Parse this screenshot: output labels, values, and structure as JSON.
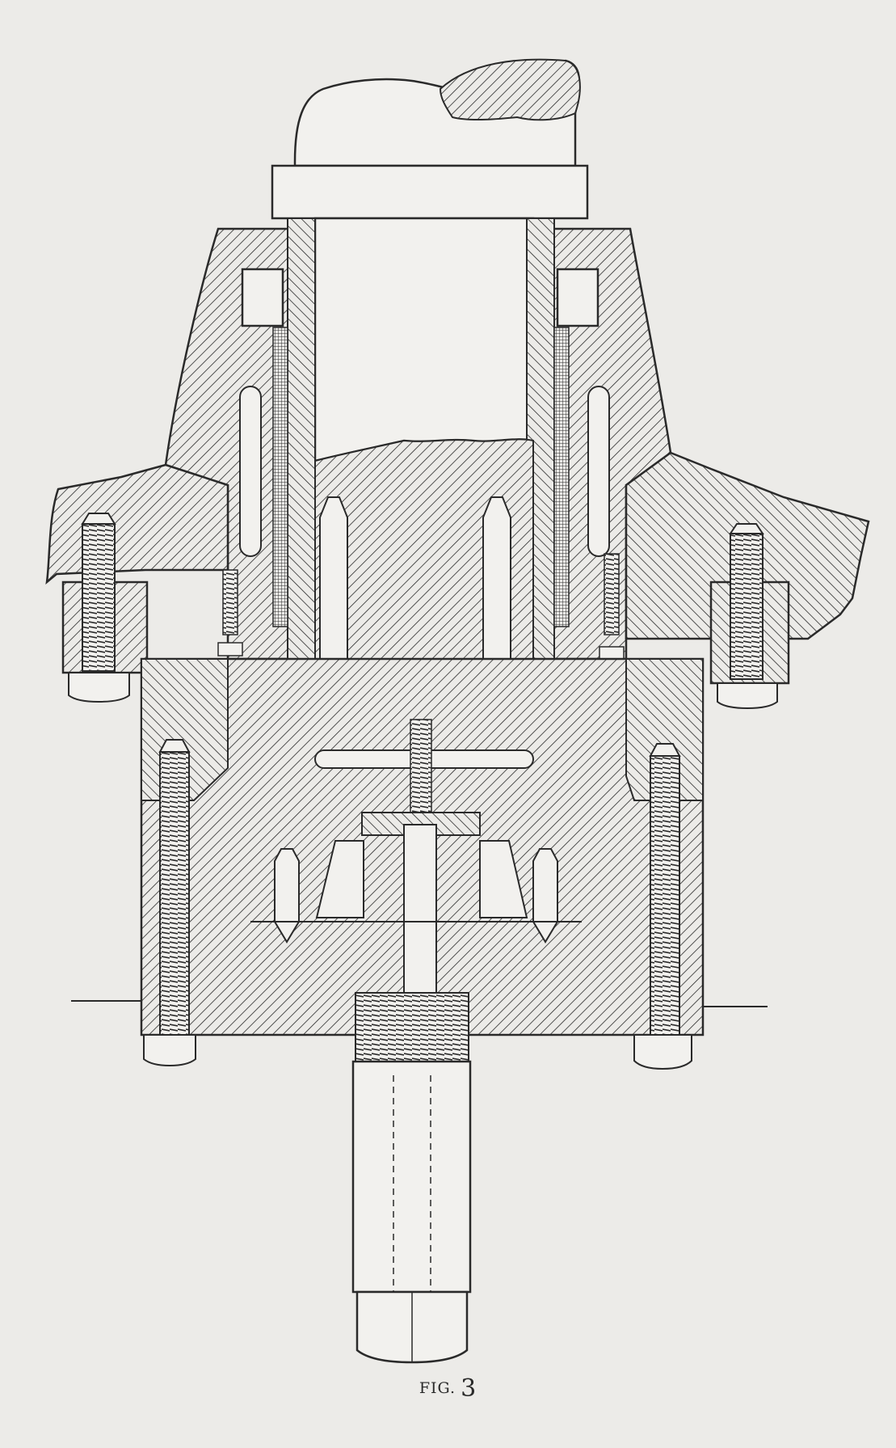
{
  "figure": {
    "caption_prefix": "FIG.",
    "caption_number": "3"
  },
  "colors": {
    "paper": "#ecebe8",
    "ink": "#2a2a2a",
    "light": "#f2f1ee"
  }
}
